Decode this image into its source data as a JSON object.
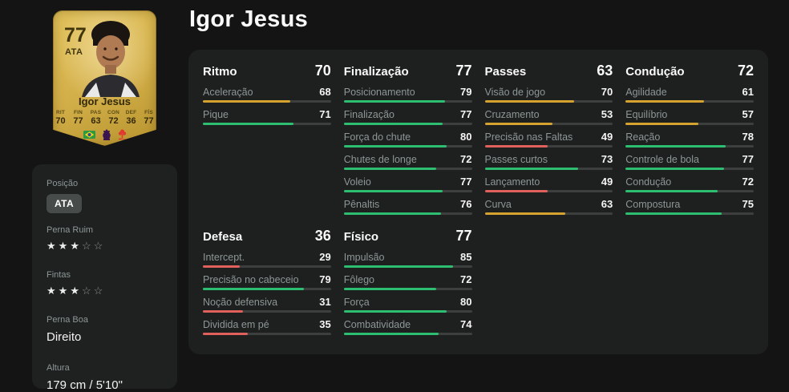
{
  "page": {
    "title": "Igor Jesus"
  },
  "card": {
    "rating": "77",
    "position": "ATA",
    "name": "Igor Jesus",
    "stats": [
      {
        "label": "RIT",
        "value": "70"
      },
      {
        "label": "FIN",
        "value": "77"
      },
      {
        "label": "PAS",
        "value": "63"
      },
      {
        "label": "CON",
        "value": "72"
      },
      {
        "label": "DEF",
        "value": "36"
      },
      {
        "label": "FÍS",
        "value": "77"
      }
    ],
    "icons": [
      "brazil-flag",
      "league-logo",
      "club-badge"
    ]
  },
  "bio": {
    "position_label": "Posição",
    "position_value": "ATA",
    "weak_foot_label": "Perna Ruim",
    "weak_foot_stars": 3,
    "skills_label": "Fintas",
    "skills_stars": 3,
    "stars_total": 5,
    "strong_foot_label": "Perna Boa",
    "strong_foot_value": "Direito",
    "height_label": "Altura",
    "height_value": "179 cm / 5'10\""
  },
  "sections": [
    {
      "name": "Ritmo",
      "value": 70,
      "stats": [
        {
          "label": "Aceleração",
          "value": 68,
          "tier": "mid"
        },
        {
          "label": "Pique",
          "value": 71,
          "tier": "high"
        }
      ]
    },
    {
      "name": "Finalização",
      "value": 77,
      "stats": [
        {
          "label": "Posicionamento",
          "value": 79,
          "tier": "high"
        },
        {
          "label": "Finalização",
          "value": 77,
          "tier": "high"
        },
        {
          "label": "Força do chute",
          "value": 80,
          "tier": "high"
        },
        {
          "label": "Chutes de longe",
          "value": 72,
          "tier": "high"
        },
        {
          "label": "Voleio",
          "value": 77,
          "tier": "high"
        },
        {
          "label": "Pênaltis",
          "value": 76,
          "tier": "high"
        }
      ]
    },
    {
      "name": "Passes",
      "value": 63,
      "stats": [
        {
          "label": "Visão de jogo",
          "value": 70,
          "tier": "mid"
        },
        {
          "label": "Cruzamento",
          "value": 53,
          "tier": "mid"
        },
        {
          "label": "Precisão nas Faltas",
          "value": 49,
          "tier": "low"
        },
        {
          "label": "Passes curtos",
          "value": 73,
          "tier": "high"
        },
        {
          "label": "Lançamento",
          "value": 49,
          "tier": "low"
        },
        {
          "label": "Curva",
          "value": 63,
          "tier": "mid"
        }
      ]
    },
    {
      "name": "Condução",
      "value": 72,
      "stats": [
        {
          "label": "Agilidade",
          "value": 61,
          "tier": "mid"
        },
        {
          "label": "Equilíbrio",
          "value": 57,
          "tier": "mid"
        },
        {
          "label": "Reação",
          "value": 78,
          "tier": "high"
        },
        {
          "label": "Controle de bola",
          "value": 77,
          "tier": "high"
        },
        {
          "label": "Condução",
          "value": 72,
          "tier": "high"
        },
        {
          "label": "Compostura",
          "value": 75,
          "tier": "high"
        }
      ]
    },
    {
      "name": "Defesa",
      "value": 36,
      "stats": [
        {
          "label": "Intercept.",
          "value": 29,
          "tier": "low"
        },
        {
          "label": "Precisão no cabeceio",
          "value": 79,
          "tier": "high"
        },
        {
          "label": "Noção defensiva",
          "value": 31,
          "tier": "low"
        },
        {
          "label": "Dividida em pé",
          "value": 35,
          "tier": "low"
        }
      ]
    },
    {
      "name": "Físico",
      "value": 77,
      "stats": [
        {
          "label": "Impulsão",
          "value": 85,
          "tier": "high"
        },
        {
          "label": "Fôlego",
          "value": 72,
          "tier": "high"
        },
        {
          "label": "Força",
          "value": 80,
          "tier": "high"
        },
        {
          "label": "Combatividade",
          "value": 74,
          "tier": "high"
        }
      ]
    }
  ],
  "colors": {
    "tiers": {
      "high": "#2dbe71",
      "mid": "#d5a22f",
      "low": "#e0605c"
    },
    "bar_track": "#3c3f3e",
    "panel": "#1e2020",
    "background": "#141414",
    "card_gold": "#d2ae48",
    "flag_green": "#2d9a43",
    "league_purple": "#3a1650",
    "club_red": "#e0392f"
  }
}
